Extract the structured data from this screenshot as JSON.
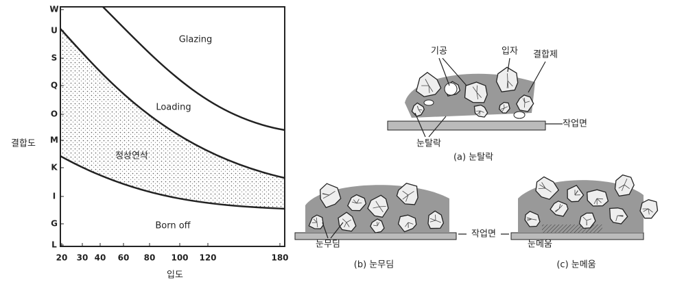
{
  "chart": {
    "y_axis_title": "결합도",
    "x_axis_title": "입도",
    "y_tick_labels": [
      "W",
      "U",
      "S",
      "Q",
      "O",
      "M",
      "K",
      "I",
      "G",
      "L"
    ],
    "x_tick_labels": [
      "20",
      "30",
      "40",
      "60",
      "80",
      "100",
      "120",
      "180"
    ],
    "regions": {
      "glazing": "Glazing",
      "loading": "Loading",
      "normal": "정상연삭",
      "born_off": "Born off"
    }
  },
  "diagrams": {
    "a": {
      "pore": "기공",
      "grain": "입자",
      "bond": "결합제",
      "surface": "작업면",
      "state": "눈탈락",
      "caption": "(a) 눈탈락"
    },
    "b": {
      "state": "눈무딤",
      "caption": "(b) 눈무딤"
    },
    "c": {
      "state": "눈메움",
      "caption": "(c) 눈메움"
    },
    "shared_surface": "작업면"
  }
}
